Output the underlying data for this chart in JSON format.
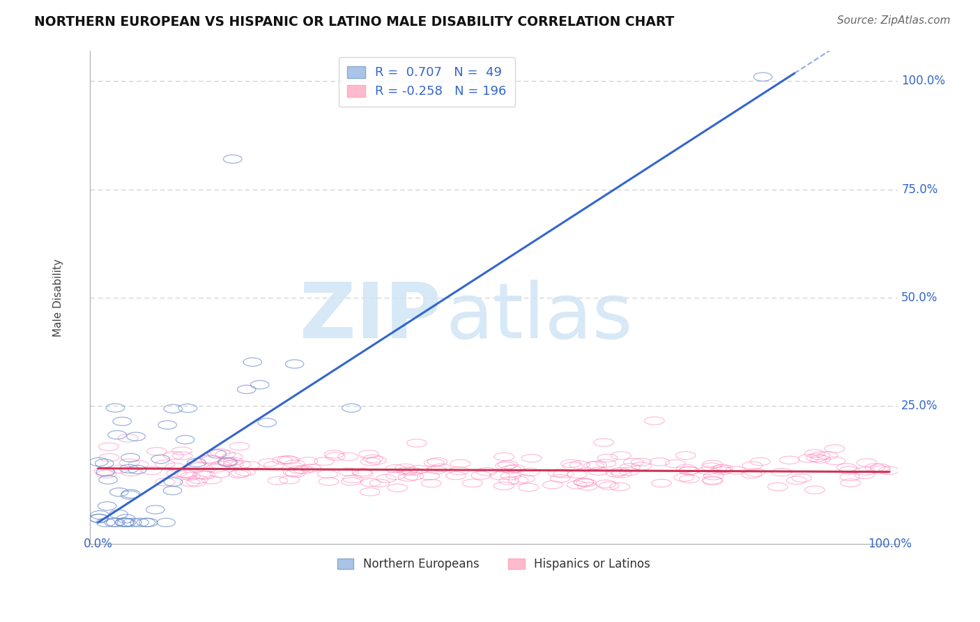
{
  "title": "NORTHERN EUROPEAN VS HISPANIC OR LATINO MALE DISABILITY CORRELATION CHART",
  "source": "Source: ZipAtlas.com",
  "ylabel": "Male Disability",
  "blue_R": 0.707,
  "blue_N": 49,
  "pink_R": -0.258,
  "pink_N": 196,
  "blue_color": "#88aadd",
  "pink_color": "#ffaacc",
  "blue_edge_color": "#6688cc",
  "pink_edge_color": "#ff88bb",
  "blue_line_color": "#3366cc",
  "pink_line_color": "#cc3355",
  "watermark_color": "#d0e4f5",
  "background_color": "#ffffff",
  "grid_color": "#cccccc",
  "seed": 12,
  "blue_line_slope": 1.18,
  "blue_line_intercept": -0.02,
  "pink_line_slope": -0.008,
  "pink_line_intercept": 0.105
}
